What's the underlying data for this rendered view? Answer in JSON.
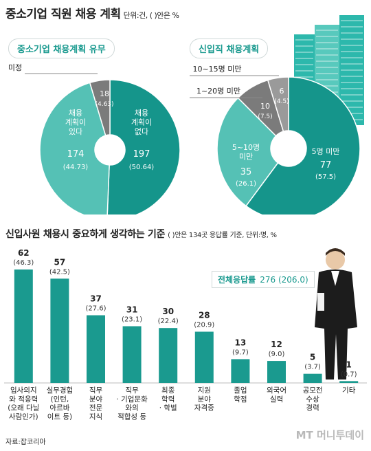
{
  "header": {
    "title": "중소기업 직원 채용 계획",
    "unit_note": "단위:건, ( )안은 %"
  },
  "donut1": {
    "label": "중소기업 채용계획 유무",
    "slices": [
      {
        "name_lines": [
          "채용",
          "계획이",
          "없다"
        ],
        "value": "197",
        "pct": "(50.64)",
        "color": "#15958b"
      },
      {
        "name_lines": [
          "채용",
          "계획이",
          "있다"
        ],
        "value": "174",
        "pct": "(44.73)",
        "color": "#55c1b5"
      },
      {
        "name_lines": [
          "미정"
        ],
        "value": "18",
        "pct": "(4.63)",
        "color": "#7b7b7b"
      }
    ]
  },
  "donut2": {
    "label": "신입직 채용계획",
    "slices": [
      {
        "name_lines": [
          "5명 미만"
        ],
        "value": "77",
        "pct": "(57.5)",
        "color": "#15958b"
      },
      {
        "name_lines": [
          "5~10명",
          "미만"
        ],
        "value": "35",
        "pct": "(26.1)",
        "color": "#55c1b5"
      },
      {
        "name_lines": [
          "1~20명 미만"
        ],
        "value": "10",
        "pct": "(7.5)",
        "color": "#7b7b7b"
      },
      {
        "name_lines": [
          "10~15명 미만"
        ],
        "value": "6",
        "pct": "(4.5)",
        "color": "#9a9a9a"
      }
    ]
  },
  "bar_section": {
    "title": "신입사원 채용시 중요하게 생각하는 기준",
    "note": "( )안은 134곳 응답률 기준, 단위:명, %",
    "total_label": "전체응답률",
    "total_value": "276",
    "total_pct": "(206.0)"
  },
  "chart_data": {
    "type": "bar",
    "categories": [
      [
        "입사의지",
        "와 적응력",
        "(오래 다닐",
        "사람인가)"
      ],
      [
        "실무경험",
        "(인턴,",
        "아르바",
        "이트 등)"
      ],
      [
        "직무",
        "분야",
        "전문",
        "지식"
      ],
      [
        "직무",
        "· 기업문화",
        "와의",
        "적합성 등"
      ],
      [
        "최종",
        "학력",
        "· 학벌"
      ],
      [
        "지원",
        "분야",
        "자격증"
      ],
      [
        "졸업",
        "학점"
      ],
      [
        "외국어",
        "실력"
      ],
      [
        "공모전",
        "수상",
        "경력"
      ],
      [
        "기타"
      ]
    ],
    "values": [
      62,
      57,
      37,
      31,
      30,
      28,
      13,
      12,
      5,
      1
    ],
    "value_labels": [
      "62",
      "57",
      "37",
      "31",
      "30",
      "28",
      "13",
      "12",
      "5",
      "1"
    ],
    "pct_labels": [
      "(46.3)",
      "(42.5)",
      "(27.6)",
      "(23.1)",
      "(22.4)",
      "(20.9)",
      "(9.7)",
      "(9.0)",
      "(3.7)",
      "(0.7)"
    ],
    "color": "#1a9a8f"
  },
  "footer": {
    "source": "자료:잡코리아",
    "brand": "MT 머니투데이"
  }
}
